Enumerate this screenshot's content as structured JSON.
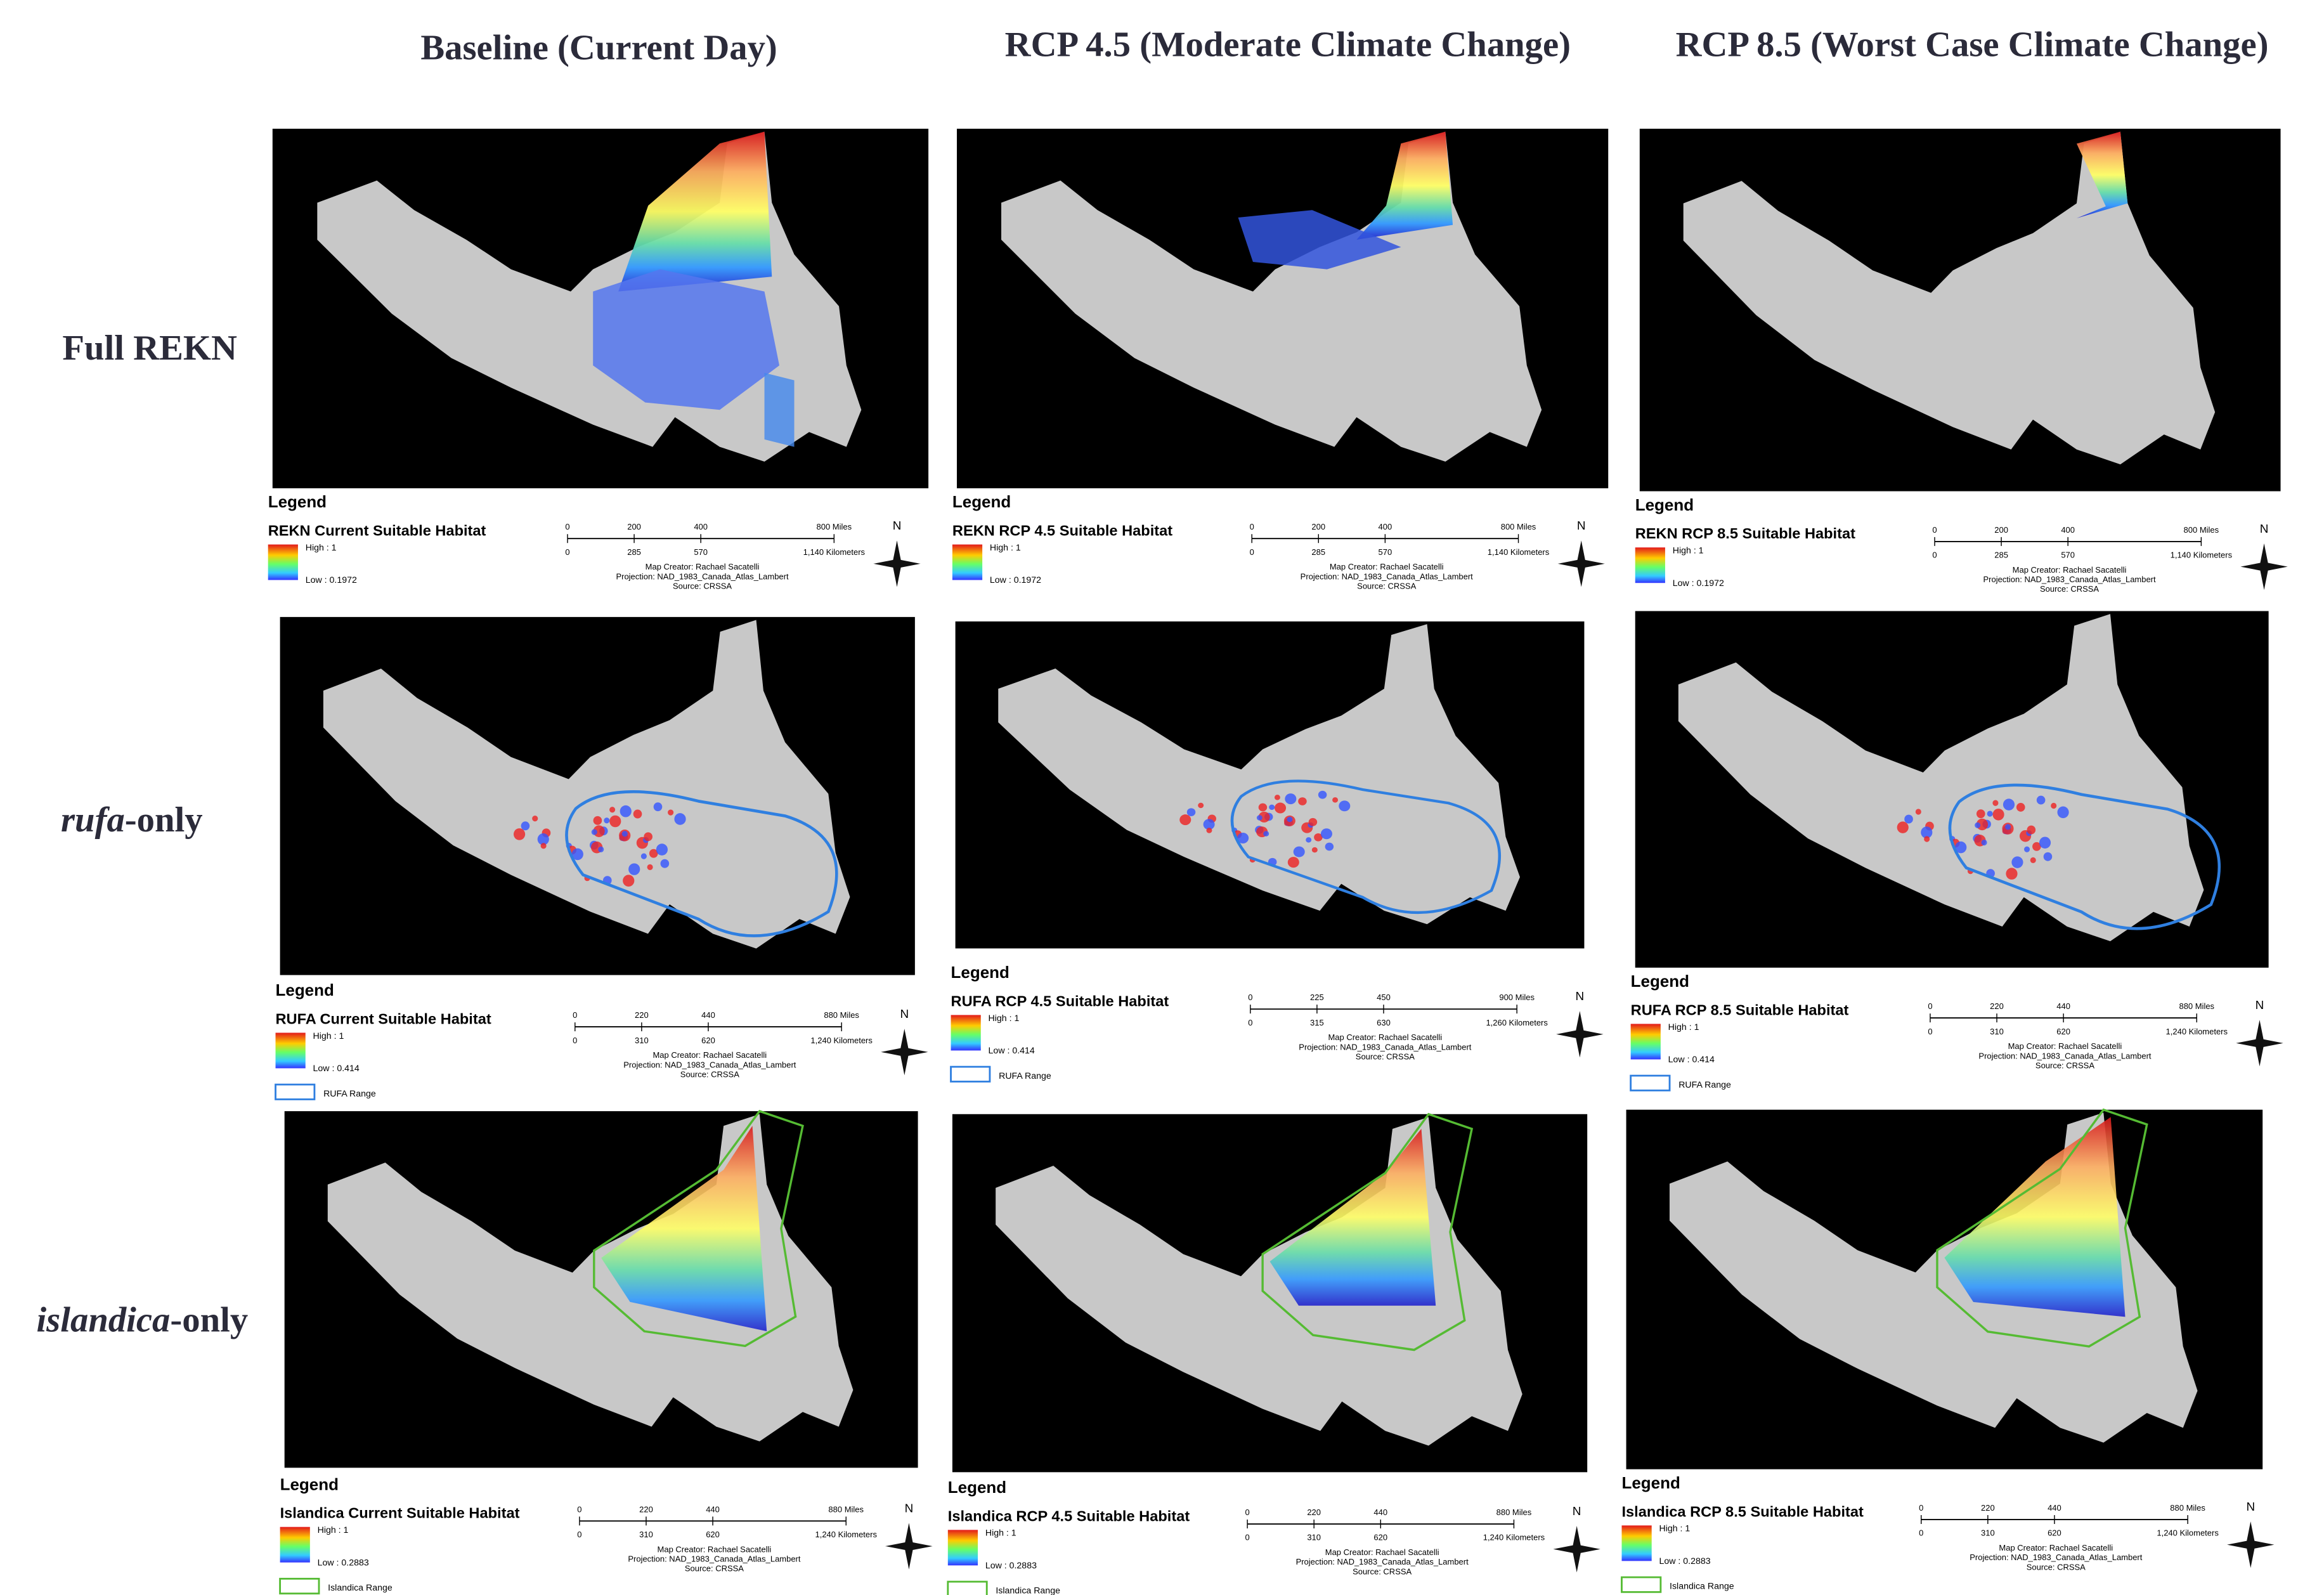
{
  "column_headers": [
    "Baseline (Current Day)",
    "RCP 4.5 (Moderate Climate Change)",
    "RCP 8.5 (Worst Case Climate Change)"
  ],
  "row_labels": [
    {
      "text": "Full REKN"
    },
    {
      "italic": "rufa",
      "text": "-only"
    },
    {
      "italic": "islandica",
      "text": "-only"
    }
  ],
  "panels": [
    [
      {
        "legend_title": "Legend",
        "layer": "REKN Current Suitable Habitat",
        "high": "High : 1",
        "low": "Low : 0.1972",
        "miles": [
          "0",
          "200",
          "400",
          "800 Miles"
        ],
        "km": [
          "0",
          "285",
          "570",
          "1,140 Kilometers"
        ],
        "credits": [
          "Map Creator: Rachael Sacatelli",
          "Projection: NAD_1983_Canada_Atlas_Lambert",
          "Source: CRSSA"
        ],
        "north": "N"
      },
      {
        "legend_title": "Legend",
        "layer": "REKN RCP 4.5 Suitable Habitat",
        "high": "High : 1",
        "low": "Low : 0.1972",
        "miles": [
          "0",
          "200",
          "400",
          "800 Miles"
        ],
        "km": [
          "0",
          "285",
          "570",
          "1,140 Kilometers"
        ],
        "credits": [
          "Map Creator: Rachael Sacatelli",
          "Projection: NAD_1983_Canada_Atlas_Lambert",
          "Source: CRSSA"
        ],
        "north": "N"
      },
      {
        "legend_title": "Legend",
        "layer": "REKN RCP 8.5 Suitable Habitat",
        "high": "High : 1",
        "low": "Low : 0.1972",
        "miles": [
          "0",
          "200",
          "400",
          "800 Miles"
        ],
        "km": [
          "0",
          "285",
          "570",
          "1,140 Kilometers"
        ],
        "credits": [
          "Map Creator: Rachael Sacatelli",
          "Projection: NAD_1983_Canada_Atlas_Lambert",
          "Source: CRSSA"
        ],
        "north": "N"
      }
    ],
    [
      {
        "legend_title": "Legend",
        "layer": "RUFA Current Suitable Habitat",
        "high": "High : 1",
        "low": "Low : 0.414",
        "miles": [
          "0",
          "220",
          "440",
          "880 Miles"
        ],
        "km": [
          "0",
          "310",
          "620",
          "1,240 Kilometers"
        ],
        "credits": [
          "Map Creator: Rachael Sacatelli",
          "Projection: NAD_1983_Canada_Atlas_Lambert",
          "Source: CRSSA"
        ],
        "north": "N",
        "range": "RUFA Range"
      },
      {
        "legend_title": "Legend",
        "layer": "RUFA RCP 4.5 Suitable Habitat",
        "high": "High : 1",
        "low": "Low : 0.414",
        "miles": [
          "0",
          "225",
          "450",
          "900 Miles"
        ],
        "km": [
          "0",
          "315",
          "630",
          "1,260 Kilometers"
        ],
        "credits": [
          "Map Creator: Rachael Sacatelli",
          "Projection: NAD_1983_Canada_Atlas_Lambert",
          "Source: CRSSA"
        ],
        "north": "N",
        "range": "RUFA Range"
      },
      {
        "legend_title": "Legend",
        "layer": "RUFA RCP 8.5 Suitable Habitat",
        "high": "High : 1",
        "low": "Low : 0.414",
        "miles": [
          "0",
          "220",
          "440",
          "880 Miles"
        ],
        "km": [
          "0",
          "310",
          "620",
          "1,240 Kilometers"
        ],
        "credits": [
          "Map Creator: Rachael Sacatelli",
          "Projection: NAD_1983_Canada_Atlas_Lambert",
          "Source: CRSSA"
        ],
        "north": "N",
        "range": "RUFA Range"
      }
    ],
    [
      {
        "legend_title": "Legend",
        "layer": "Islandica Current Suitable Habitat",
        "high": "High : 1",
        "low": "Low : 0.2883",
        "miles": [
          "0",
          "220",
          "440",
          "880 Miles"
        ],
        "km": [
          "0",
          "310",
          "620",
          "1,240 Kilometers"
        ],
        "credits": [
          "Map Creator: Rachael Sacatelli",
          "Projection: NAD_1983_Canada_Atlas_Lambert",
          "Source: CRSSA"
        ],
        "north": "N",
        "range": "Islandica Range"
      },
      {
        "legend_title": "Legend",
        "layer": "Islandica RCP 4.5 Suitable Habitat",
        "high": "High : 1",
        "low": "Low : 0.2883",
        "miles": [
          "0",
          "220",
          "440",
          "880 Miles"
        ],
        "km": [
          "0",
          "310",
          "620",
          "1,240 Kilometers"
        ],
        "credits": [
          "Map Creator: Rachael Sacatelli",
          "Projection: NAD_1983_Canada_Atlas_Lambert",
          "Source: CRSSA"
        ],
        "north": "N",
        "range": "Islandica Range"
      },
      {
        "legend_title": "Legend",
        "layer": "Islandica RCP 8.5 Suitable Habitat",
        "high": "High : 1",
        "low": "Low : 0.2883",
        "miles": [
          "0",
          "220",
          "440",
          "880 Miles"
        ],
        "km": [
          "0",
          "310",
          "620",
          "1,240 Kilometers"
        ],
        "credits": [
          "Map Creator: Rachael Sacatelli",
          "Projection: NAD_1983_Canada_Atlas_Lambert",
          "Source: CRSSA"
        ],
        "north": "N",
        "range": "Islandica Range"
      }
    ]
  ]
}
